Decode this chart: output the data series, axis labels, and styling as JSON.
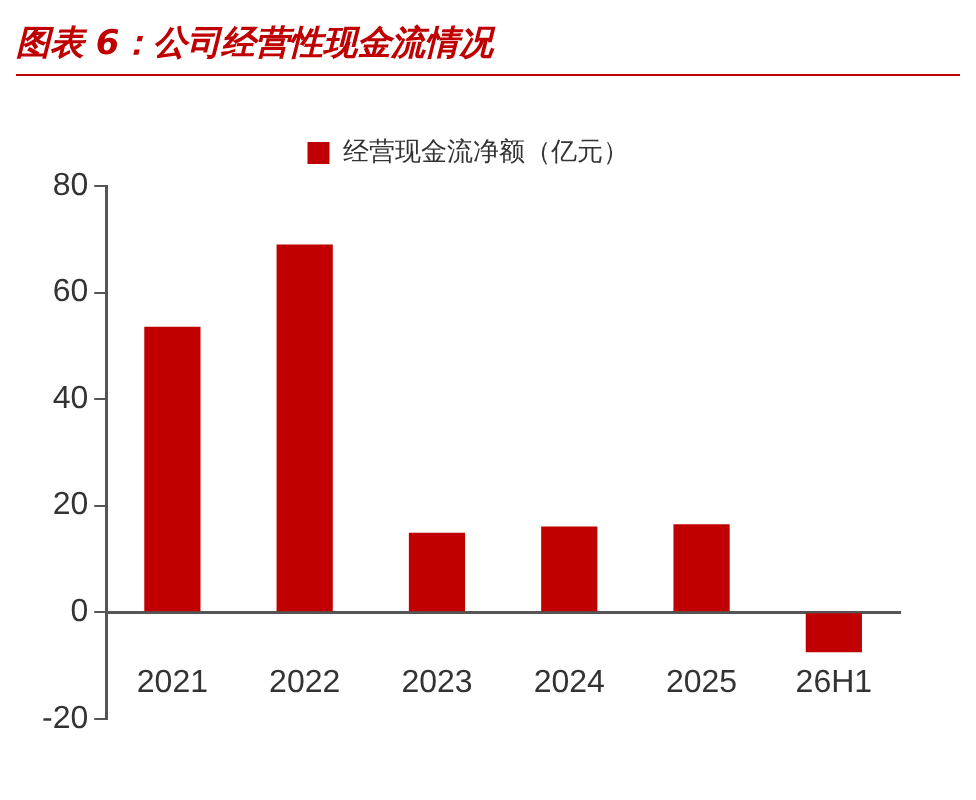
{
  "chart_data": {
    "type": "bar",
    "title": "图表 6：公司经营性现金流情况",
    "categories": [
      "2021",
      "2022",
      "2023",
      "2024",
      "2025",
      "26H1"
    ],
    "series": [
      {
        "name": "经营现金流净额（亿元）",
        "color": "#c00000",
        "values": [
          53.6,
          69,
          14.9,
          16.1,
          16.5,
          -7.5
        ]
      }
    ],
    "ylim": [
      -20,
      80
    ],
    "yticks": [
      -20,
      0,
      20,
      40,
      60,
      80
    ],
    "grid": false,
    "legend": "top"
  }
}
